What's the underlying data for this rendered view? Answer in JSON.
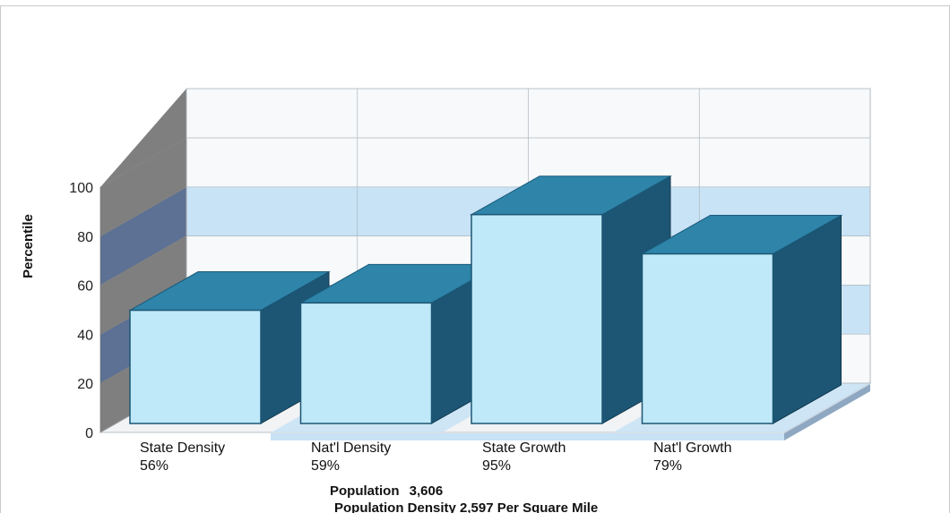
{
  "colors": {
    "bar_front": "#bfe9f9",
    "bar_top": "#2e84a9",
    "bar_side": "#1c5674",
    "wall_back": "#f7f9fa",
    "wall_band": "#c8e2f6",
    "wall_left_dark": "#7f7f7f",
    "wall_left_band": "#5c7193",
    "floor": "#f1f3f4",
    "floor_band": "#c8e2f6"
  },
  "footer": {
    "population_label": "Population",
    "population_value": "3,606",
    "density_text": "Population Density 2,597 Per Square Mile"
  },
  "chart_data": {
    "type": "bar",
    "style": "3d",
    "ylabel": "Percentile",
    "ylim": [
      0,
      100
    ],
    "yticks": [
      0,
      20,
      40,
      60,
      80,
      100
    ],
    "grid": true,
    "legend": "none",
    "categories": [
      "State Density",
      "Nat'l Density",
      "State Growth",
      "Nat'l Growth"
    ],
    "values": [
      56,
      59,
      95,
      79
    ],
    "value_labels": [
      "56%",
      "59%",
      "95%",
      "79%"
    ]
  }
}
